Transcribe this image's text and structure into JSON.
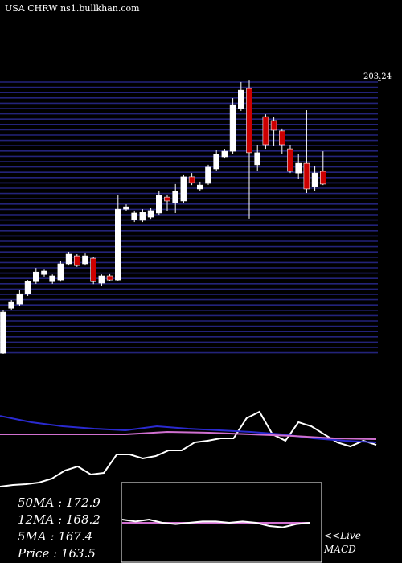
{
  "chart_data": [
    {
      "type": "candlestick",
      "title": "USA CHRW ns1.bullkhan.com",
      "open": [
        90.3,
        108.9,
        110.6,
        114.9,
        119.9,
        122.9,
        119.9,
        120.6,
        127.3,
        130.6,
        127.3,
        129.6,
        119.3,
        122.3,
        120.6,
        149.9,
        145.6,
        145.3,
        146.6,
        148.3,
        154.9,
        152.6,
        153.3,
        163.3,
        158.3,
        160.6,
        166.6,
        171.6,
        173.9,
        191.6,
        199.9,
        168.3,
        188.2,
        186.6,
        182.3,
        174.9,
        164.9,
        168.9,
        159.3,
        165.6
      ],
      "high": [
        108.3,
        112.3,
        116.6,
        120.6,
        125.6,
        124.9,
        122.9,
        128.3,
        132.3,
        131.3,
        131.6,
        130.0,
        122.9,
        123.0,
        155.6,
        151.9,
        149.3,
        149.9,
        150.3,
        157.3,
        155.9,
        160.3,
        164.3,
        164.9,
        161.3,
        168.3,
        174.3,
        174.9,
        195.9,
        202.6,
        203.2,
        176.6,
        189.2,
        188.2,
        183.3,
        176.6,
        172.6,
        190.9,
        167.6,
        173.9
      ],
      "low": [
        90.0,
        108.0,
        109.8,
        114.0,
        119.0,
        122.0,
        119.0,
        119.9,
        126.6,
        126.0,
        126.6,
        118.9,
        118.3,
        120.0,
        120.0,
        149.3,
        144.6,
        144.6,
        145.9,
        147.6,
        149.3,
        148.3,
        152.6,
        159.9,
        157.6,
        160.0,
        165.9,
        170.9,
        172.9,
        190.6,
        146.0,
        165.9,
        174.9,
        176.0,
        172.6,
        164.9,
        162.6,
        156.6,
        157.3,
        159.9
      ],
      "close": [
        107.3,
        111.6,
        114.9,
        119.9,
        123.9,
        124.3,
        122.3,
        127.3,
        131.3,
        126.6,
        130.6,
        119.9,
        122.3,
        120.6,
        149.9,
        150.9,
        148.3,
        148.6,
        149.3,
        155.6,
        153.3,
        157.3,
        163.3,
        160.9,
        159.9,
        167.3,
        172.6,
        173.9,
        193.2,
        199.2,
        173.3,
        173.3,
        176.6,
        182.6,
        176.6,
        165.6,
        168.9,
        158.3,
        164.9,
        160.3
      ],
      "up_color": "#ffffff",
      "down_color": "#cc0000",
      "ylim": [
        90,
        203.24
      ],
      "yticks": [
        203.24
      ],
      "annotations": [
        "50MA  : 172.9",
        "12MA  : 168.2",
        "5MA  : 167.4",
        "Price   : 163.5"
      ]
    },
    {
      "type": "line",
      "ylim": [
        0,
        100
      ],
      "series": [
        {
          "color": "#ffffff",
          "values": [
            4.5,
            6.4,
            7.3,
            9.1,
            13.6,
            22.7,
            27.3,
            18.2,
            20,
            40.9,
            40.9,
            36.4,
            39.1,
            45.5,
            45.5,
            54.5,
            56.4,
            59.1,
            59.1,
            81.8,
            89.1,
            63.6,
            56.4,
            77.3,
            72.7,
            63.6,
            54.5,
            50,
            56.4,
            51.8
          ]
        },
        {
          "color": "#2a2ad0",
          "values": [
            84.5,
            77.3,
            72.7,
            70,
            68.2,
            72.7,
            70,
            68.2,
            66.4,
            63.6,
            59.1,
            56.4,
            54.5
          ]
        },
        {
          "color": "#d070d0",
          "values": [
            63.6,
            63.6,
            63.6,
            63.6,
            66.4,
            65.5,
            63.6,
            61.8,
            59.1,
            58.2
          ]
        }
      ]
    },
    {
      "type": "line",
      "ylim": [
        0,
        100
      ],
      "label_lines": [
        "<<Live",
        "MACD"
      ],
      "series": [
        {
          "color": "#d070d0",
          "values": [
            50,
            50,
            50,
            50,
            50,
            50,
            50,
            50,
            50,
            50
          ]
        },
        {
          "color": "#ffffff",
          "values": [
            55,
            52,
            55,
            50,
            48,
            50,
            52,
            52,
            50,
            52,
            50,
            45,
            43,
            48,
            50
          ]
        }
      ]
    }
  ]
}
